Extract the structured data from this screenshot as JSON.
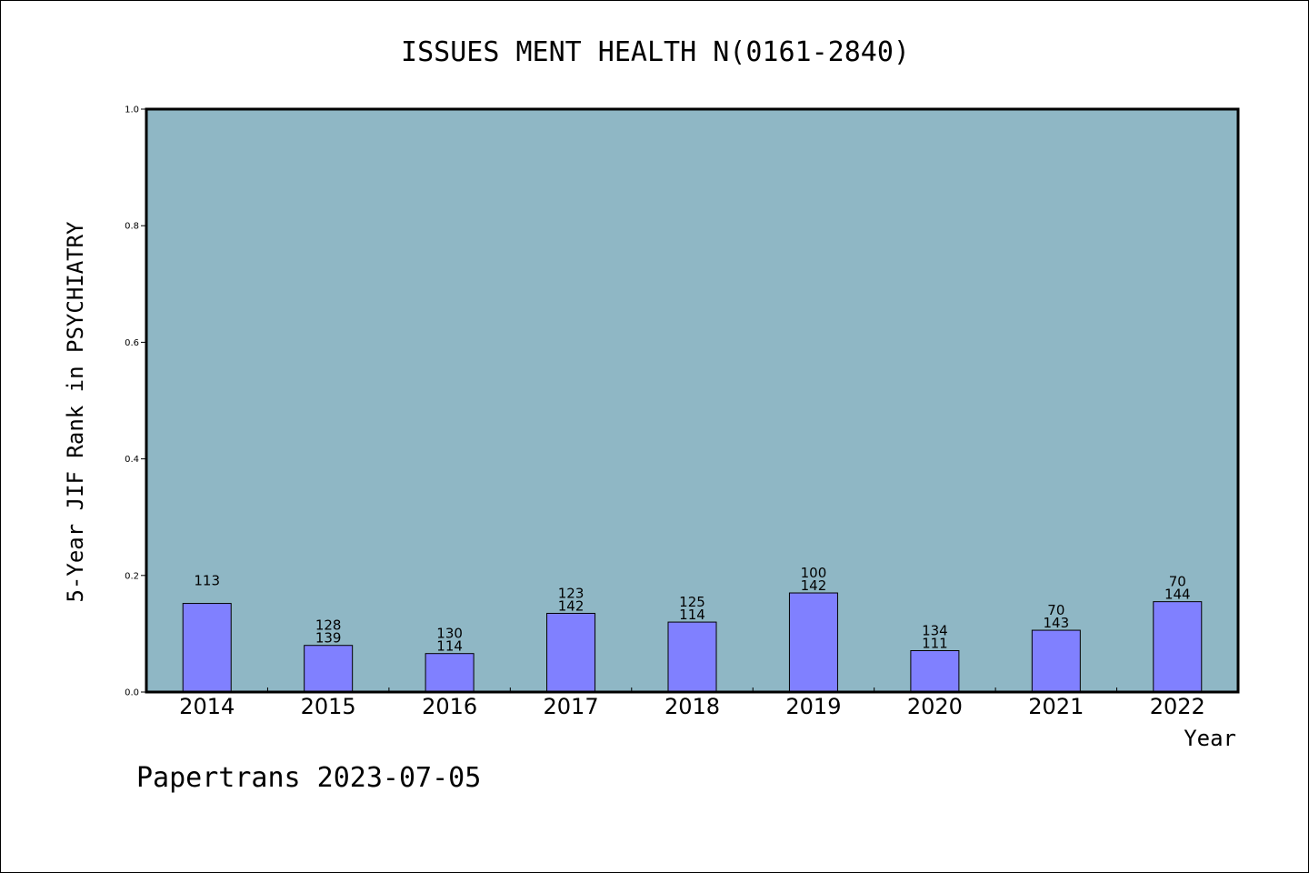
{
  "chart_data": {
    "type": "bar",
    "title": "ISSUES MENT HEALTH N(0161-2840)",
    "xlabel": "Year",
    "ylabel": "5-Year JIF Rank in PSYCHIATRY",
    "categories": [
      "2014",
      "2015",
      "2016",
      "2017",
      "2018",
      "2019",
      "2020",
      "2021",
      "2022"
    ],
    "values": [
      0.152,
      0.08,
      0.066,
      0.135,
      0.12,
      0.17,
      0.071,
      0.106,
      0.155
    ],
    "label_top": [
      "",
      "128",
      "130",
      "123",
      "125",
      "100",
      "134",
      "70",
      "70"
    ],
    "label_bottom": [
      "113",
      "139",
      "114",
      "142",
      "114",
      "142",
      "111",
      "143",
      "144"
    ],
    "ylim": [
      0.0,
      1.0
    ],
    "yticks": [
      "0.0",
      "0.2",
      "0.4",
      "0.6",
      "0.8",
      "1.0"
    ],
    "plot_background": "#8fb7c5",
    "bar_color": "#8080ff",
    "grid": false
  },
  "footer": "Papertrans 2023-07-05"
}
